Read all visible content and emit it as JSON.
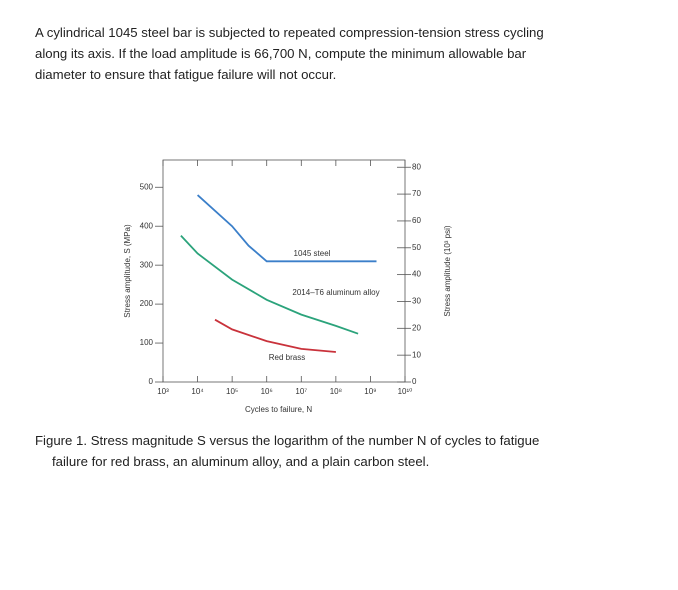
{
  "problem": {
    "text": "A cylindrical 1045 steel bar is subjected to repeated compression-tension stress cycling along its axis. If the load amplitude is 66,700 N, compute the minimum allowable bar diameter to ensure that fatigue failure will not occur."
  },
  "chart_data": {
    "type": "line",
    "log_x": true,
    "xlabel": "Cycles to failure, N",
    "ylabel": "Stress amplitude, S (MPa)",
    "y2label": "Stress amplitude (10³ psi)",
    "xlim": [
      1000,
      10000000000
    ],
    "xticks": [
      {
        "value": 1000,
        "label": "10³"
      },
      {
        "value": 10000,
        "label": "10⁴"
      },
      {
        "value": 100000,
        "label": "10⁵"
      },
      {
        "value": 1000000,
        "label": "10⁶"
      },
      {
        "value": 10000000,
        "label": "10⁷"
      },
      {
        "value": 100000000,
        "label": "10⁸"
      },
      {
        "value": 1000000000,
        "label": "10⁹"
      },
      {
        "value": 10000000000,
        "label": "10¹⁰"
      }
    ],
    "ylim": [
      0,
      570
    ],
    "yticks": [
      0,
      100,
      200,
      300,
      400,
      500
    ],
    "y2lim": [
      0,
      82.7
    ],
    "y2ticks": [
      0,
      10,
      20,
      30,
      40,
      50,
      60,
      70,
      80
    ],
    "series": [
      {
        "name": "1045 steel",
        "color": "#3b7fc9",
        "x": [
          10000,
          100000,
          300000,
          1000000,
          10000000,
          1500000000
        ],
        "values": [
          480,
          400,
          350,
          310,
          310,
          310
        ]
      },
      {
        "name": "2014–T6 aluminum alloy",
        "color": "#2ba37b",
        "x": [
          3300,
          10000,
          100000,
          1000000,
          10000000,
          100000000,
          440000000
        ],
        "values": [
          376,
          330,
          263,
          211,
          173,
          144,
          124
        ]
      },
      {
        "name": "Red brass",
        "color": "#c9323b",
        "x": [
          32000,
          100000,
          1000000,
          10000000,
          100000000
        ],
        "values": [
          160,
          135,
          105,
          85,
          77
        ]
      }
    ]
  },
  "caption": {
    "text": "Figure 1. Stress magnitude S versus the logarithm of the number N of cycles to fatigue failure for red brass, an aluminum alloy, and a plain carbon steel."
  }
}
